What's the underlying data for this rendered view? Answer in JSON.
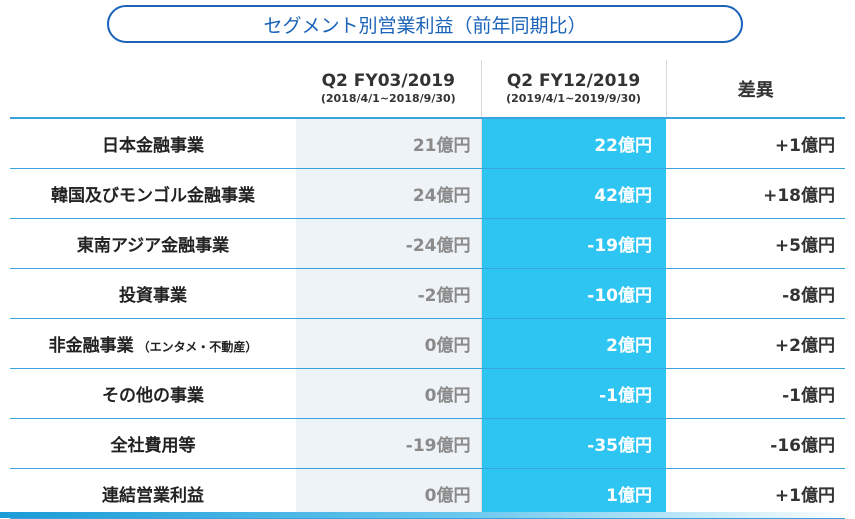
{
  "title": "セグメント別営業利益（前年同期比）",
  "header": {
    "prev_period": "Q2 FY03/2019",
    "prev_range": "(2018/4/1~2018/9/30)",
    "curr_period": "Q2 FY12/2019",
    "curr_range": "(2019/4/1~2019/9/30)",
    "diff": "差異"
  },
  "rows": [
    {
      "label": "日本金融事業",
      "label_note": "",
      "prev": "21億円",
      "curr": "22億円",
      "diff": "+1億円"
    },
    {
      "label": "韓国及びモンゴル金融事業",
      "label_note": "",
      "prev": "24億円",
      "curr": "42億円",
      "diff": "+18億円"
    },
    {
      "label": "東南アジア金融事業",
      "label_note": "",
      "prev": "-24億円",
      "curr": "-19億円",
      "diff": "+5億円"
    },
    {
      "label": "投資事業",
      "label_note": "",
      "prev": "-2億円",
      "curr": "-10億円",
      "diff": "-8億円"
    },
    {
      "label": "非金融事業",
      "label_note": "（エンタメ・不動産）",
      "prev": "0億円",
      "curr": "2億円",
      "diff": "+2億円"
    },
    {
      "label": "その他の事業",
      "label_note": "",
      "prev": "0億円",
      "curr": "-1億円",
      "diff": "-1億円"
    },
    {
      "label": "全社費用等",
      "label_note": "",
      "prev": "-19億円",
      "curr": "-35億円",
      "diff": "-16億円"
    },
    {
      "label": "連結営業利益",
      "label_note": "",
      "prev": "0億円",
      "curr": "1億円",
      "diff": "+1億円"
    }
  ],
  "colors": {
    "accent": "#1a63b8",
    "highlight": "#2ec5f3",
    "rule": "#3aa3dc",
    "prev_bg": "#eef3f7"
  }
}
